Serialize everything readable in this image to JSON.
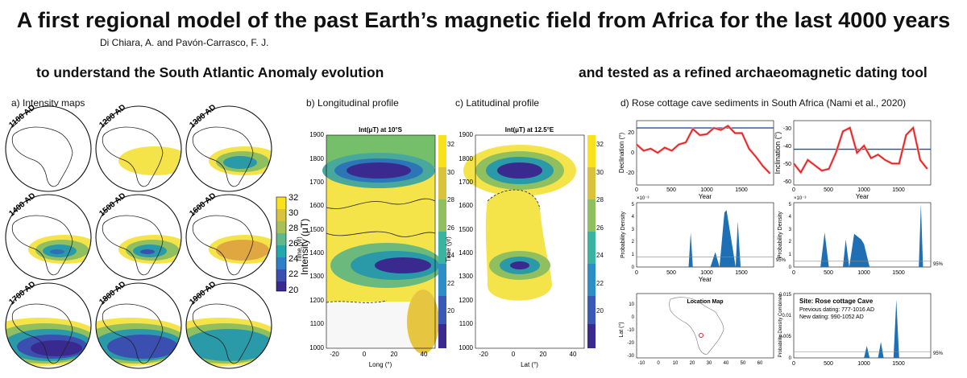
{
  "header": {
    "title": "A first regional model of the past Earth’s magnetic field from Africa for the last 4000 years",
    "authors": "Di Chiara, A. and Pavón-Carrasco, F. J.",
    "left_subtitle": "to understand the South Atlantic Anomaly evolution",
    "right_subtitle": "and tested as a refined archaeomagnetic dating tool"
  },
  "panel_a": {
    "label": "a) Intensity maps",
    "maps": [
      "1100 AD",
      "1200 AD",
      "1300 AD",
      "1400 AD",
      "1500 AD",
      "1600 AD",
      "1700 AD",
      "1800 AD",
      "1900 AD"
    ],
    "colorbar_label": "Intensity (μT)",
    "colorbar_ticks": [
      "32",
      "30",
      "28",
      "26",
      "24",
      "22",
      "20"
    ]
  },
  "panel_b": {
    "label": "b) Longitudinal profile",
    "plot_title": "Int(μT) at 10°S",
    "xlabel": "Long (°)",
    "ylabel": "Time (yr)",
    "xticks": [
      "-20",
      "0",
      "20",
      "40"
    ],
    "yticks": [
      "1900",
      "1800",
      "1700",
      "1600",
      "1500",
      "1400",
      "1300",
      "1200",
      "1100",
      "1000"
    ],
    "cbar_ticks": [
      "32",
      "30",
      "28",
      "26",
      "24",
      "22",
      "20"
    ]
  },
  "panel_c": {
    "label": "c) Latitudinal profile",
    "plot_title": "Int(μT) at 12.5°E",
    "xlabel": "Lat (°)",
    "ylabel": "Time (yr)",
    "xticks": [
      "-20",
      "0",
      "20",
      "40"
    ],
    "yticks": [
      "1900",
      "1800",
      "1700",
      "1600",
      "1500",
      "1400",
      "1300",
      "1200",
      "1100",
      "1000"
    ],
    "cbar_ticks": [
      "32",
      "30",
      "28",
      "26",
      "24",
      "22",
      "20"
    ]
  },
  "panel_d": {
    "label": "d) Rose cottage cave sediments in South Africa (Nami et al., 2020)",
    "decl": {
      "ylabel": "Declination (°)",
      "xlabel": "Year",
      "yticks": [
        "20",
        "0",
        "-20"
      ],
      "xticks": [
        "0",
        "500",
        "1000",
        "1500"
      ]
    },
    "incl": {
      "ylabel": "Inclination (°)",
      "xlabel": "Year",
      "yticks": [
        "-30",
        "-40",
        "-50",
        "-60"
      ],
      "xticks": [
        "0",
        "500",
        "1000",
        "1500"
      ]
    },
    "pd1": {
      "ylabel": "Probability Density",
      "xlabel": "Year",
      "exp": "×10⁻³",
      "yticks": [
        "5",
        "4",
        "3",
        "2",
        "1",
        "0"
      ],
      "xticks": [
        "0",
        "500",
        "1000",
        "1500"
      ],
      "level": "95%"
    },
    "pd2": {
      "ylabel": "Probability Density",
      "exp": "×10⁻³",
      "yticks": [
        "5",
        "4",
        "3",
        "2",
        "1",
        "0"
      ],
      "xticks": [
        "0",
        "500",
        "1000",
        "1500"
      ],
      "level": "95%"
    },
    "map": {
      "title": "Location Map",
      "ylabel": "Lat (°)",
      "yticks": [
        "10",
        "0",
        "-10",
        "-20",
        "-30"
      ],
      "xticks": [
        "-10",
        "0",
        "10",
        "20",
        "30",
        "40",
        "50",
        "60"
      ]
    },
    "combined": {
      "ylabel": "Probability Density Combined",
      "yticks": [
        "0.015",
        "0.01",
        "0.005",
        "0"
      ],
      "xticks": [
        "0",
        "500",
        "1000",
        "1500"
      ],
      "level": "95%",
      "site": "Site: Rose cottage Cave",
      "previous": "Previous dating: 777-1016 AD",
      "new": "New dating: 990-1052 AD"
    }
  },
  "chart_data": [
    {
      "type": "line",
      "title": "",
      "ylabel": "Declination (°)",
      "xlabel": "Year",
      "x": [
        0,
        100,
        200,
        300,
        400,
        500,
        600,
        700,
        800,
        900,
        1000,
        1100,
        1200,
        1300,
        1400,
        1500,
        1600,
        1700,
        1800,
        1900
      ],
      "series": [
        {
          "values": [
            9,
            3,
            5,
            1,
            6,
            3,
            9,
            11,
            24,
            18,
            19,
            25,
            23,
            27,
            20,
            20,
            5,
            -3,
            -12,
            -19
          ]
        }
      ],
      "reference": 25,
      "xlim": [
        0,
        1950
      ],
      "ylim": [
        -30,
        32
      ]
    },
    {
      "type": "line",
      "title": "",
      "ylabel": "Inclination (°)",
      "xlabel": "Year",
      "x": [
        0,
        100,
        200,
        300,
        400,
        500,
        600,
        700,
        800,
        900,
        1000,
        1100,
        1200,
        1300,
        1400,
        1500,
        1600,
        1700,
        1800,
        1900
      ],
      "series": [
        {
          "values": [
            -50,
            -55,
            -48,
            -51,
            -54,
            -53,
            -44,
            -32,
            -30,
            -44,
            -40,
            -47,
            -45,
            -48,
            -50,
            -50,
            -34,
            -30,
            -48,
            -53
          ]
        }
      ],
      "reference": -42,
      "xlim": [
        0,
        1950
      ],
      "ylim": [
        -62,
        -26
      ]
    },
    {
      "type": "area",
      "ylabel": "Probability Density",
      "xlabel": "Year",
      "x": [
        740,
        770,
        800,
        1050,
        1120,
        1180,
        1250,
        1280,
        1410,
        1440,
        1480
      ],
      "values": [
        0,
        2.8,
        0,
        0,
        1.2,
        0,
        4.4,
        4.6,
        0,
        3.7,
        0
      ],
      "level_95": 0.8,
      "xlim": [
        0,
        1950
      ],
      "ylim": [
        0,
        5.2
      ]
    },
    {
      "type": "area",
      "ylabel": "Probability Density",
      "x": [
        380,
        440,
        500,
        700,
        740,
        790,
        860,
        960,
        1000,
        1080,
        1780,
        1810,
        1840
      ],
      "values": [
        0,
        3.0,
        0,
        0,
        2.4,
        0,
        2.9,
        2.4,
        2.0,
        0,
        0,
        5.5,
        0
      ],
      "level_95": 0.5,
      "xlim": [
        0,
        1950
      ],
      "ylim": [
        0,
        5.6
      ]
    },
    {
      "type": "area",
      "ylabel": "Probability Density Combined",
      "x": [
        1000,
        1040,
        1080,
        1200,
        1240,
        1280,
        1420,
        1460,
        1500
      ],
      "values": [
        0,
        0.003,
        0,
        0,
        0.004,
        0,
        0,
        0.0145,
        0
      ],
      "level_95": 0.0015,
      "xlim": [
        0,
        1950
      ],
      "ylim": [
        0,
        0.016
      ]
    }
  ],
  "colors": {
    "line_red": "#e41a1c",
    "ref_blue": "#1f4fa8",
    "fill_blue": "#1f6fb4"
  }
}
